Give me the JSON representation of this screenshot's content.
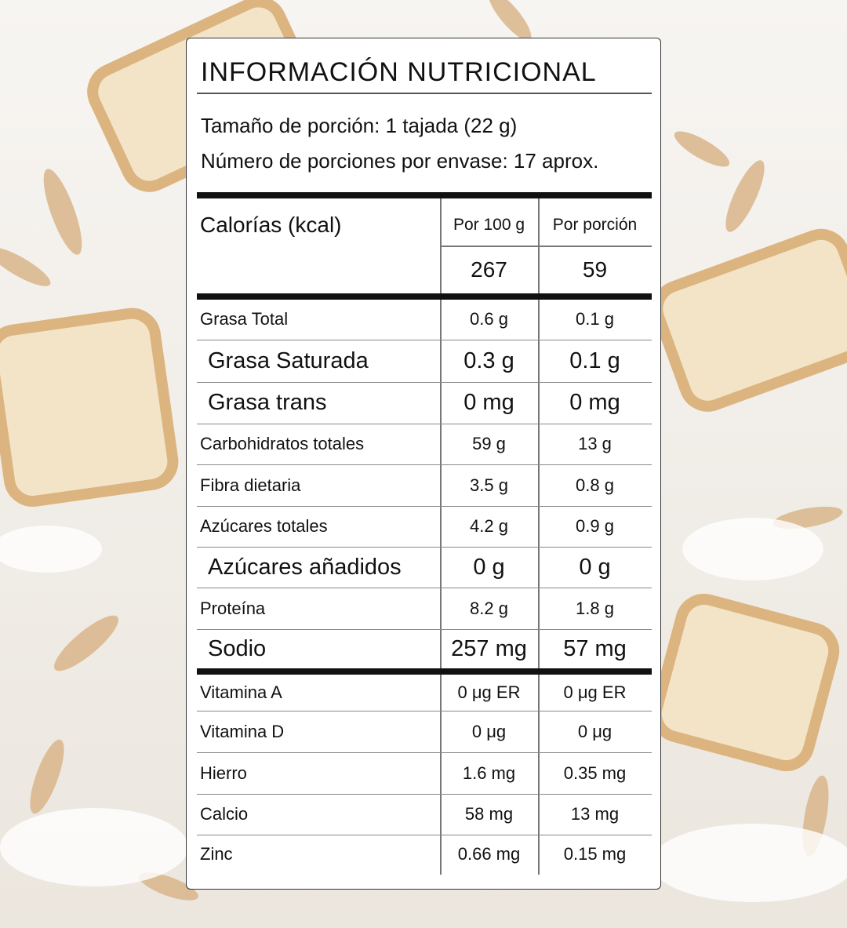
{
  "header": {
    "title": "INFORMACIÓN NUTRICIONAL",
    "serving_size": "Tamaño de porción: 1 tajada (22 g)",
    "servings_per_container": "Número de porciones por envase: 17 aprox."
  },
  "table": {
    "calories_label": "Calorías (kcal)",
    "columns": [
      "Por 100 g",
      "Por porción"
    ],
    "calories": [
      267,
      59
    ],
    "rows": [
      [
        "Grasa Total",
        "0.6 g",
        "0.1 g"
      ],
      [
        "Grasa Saturada",
        "0.3 g",
        "0.1 g"
      ],
      [
        "Grasa trans",
        "0 mg",
        "0 mg"
      ],
      [
        "Carbohidratos totales",
        "59 g",
        "13 g"
      ],
      [
        "Fibra dietaria",
        "3.5 g",
        "0.8 g"
      ],
      [
        "Azúcares totales",
        "4.2 g",
        "0.9 g"
      ],
      [
        "Azúcares añadidos",
        "0 g",
        "0 g"
      ],
      [
        "Proteína",
        "8.2 g",
        "1.8 g"
      ],
      [
        "Sodio",
        "257 mg",
        "57 mg"
      ]
    ],
    "micronutrients": [
      [
        "Vitamina A",
        "0 μg ER",
        "0 μg ER"
      ],
      [
        "Vitamina D",
        "0 μg",
        "0 μg"
      ],
      [
        "Hierro",
        "1.6 mg",
        "0.35 mg"
      ],
      [
        "Calcio",
        "58 mg",
        "13 mg"
      ],
      [
        "Zinc",
        "0.66 mg",
        "0.15 mg"
      ]
    ]
  }
}
